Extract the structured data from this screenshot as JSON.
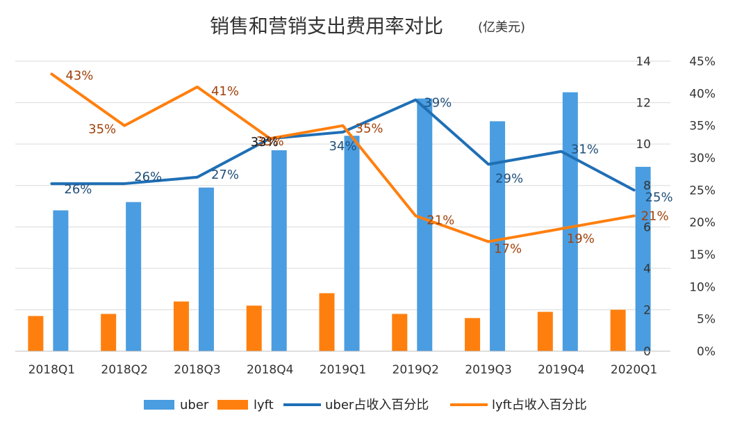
{
  "chart_data": {
    "type": "bar",
    "title": "销售和营销支出费用率对比",
    "subtitle": "(亿美元)",
    "categories": [
      "2018Q1",
      "2018Q2",
      "2018Q3",
      "2018Q4",
      "2019Q1",
      "2019Q2",
      "2019Q3",
      "2019Q4",
      "2020Q1"
    ],
    "y_left": {
      "ylim": [
        0,
        14
      ],
      "ticks": [
        "0",
        "2",
        "4",
        "6",
        "8",
        "10",
        "12",
        "14"
      ]
    },
    "y_right": {
      "ylim": [
        0,
        45
      ],
      "ticks": [
        "0%",
        "5%",
        "10%",
        "15%",
        "20%",
        "25%",
        "30%",
        "35%",
        "40%",
        "45%"
      ]
    },
    "grid": true,
    "legend_position": "bottom",
    "series": [
      {
        "name": "uber",
        "type": "bar",
        "axis": "left",
        "color": "#4A9DE0",
        "values": [
          6.8,
          7.2,
          7.9,
          9.7,
          10.4,
          12.2,
          11.1,
          12.5,
          8.9
        ]
      },
      {
        "name": "lyft",
        "type": "bar",
        "axis": "left",
        "color": "#FF7F0E",
        "values": [
          1.7,
          1.8,
          2.4,
          2.2,
          2.8,
          1.8,
          1.6,
          1.9,
          2.0
        ]
      },
      {
        "name": "uber占收入百分比",
        "type": "line",
        "axis": "right",
        "color": "#1F6FB5",
        "label_color": "#1F4E79",
        "values": [
          26,
          26,
          27,
          33,
          34,
          39,
          29,
          31,
          25
        ],
        "labels": [
          "26%",
          "26%",
          "27%",
          "33%",
          "34%",
          "39%",
          "29%",
          "31%",
          "25%"
        ]
      },
      {
        "name": "lyft占收入百分比",
        "type": "line",
        "axis": "right",
        "color": "#FF7F0E",
        "label_color": "#A0410A",
        "values": [
          43,
          35,
          41,
          33,
          35,
          21,
          17,
          19,
          21
        ],
        "labels": [
          "43%",
          "35%",
          "41%",
          "33%",
          "35%",
          "21%",
          "17%",
          "19%",
          "21%"
        ]
      }
    ]
  }
}
